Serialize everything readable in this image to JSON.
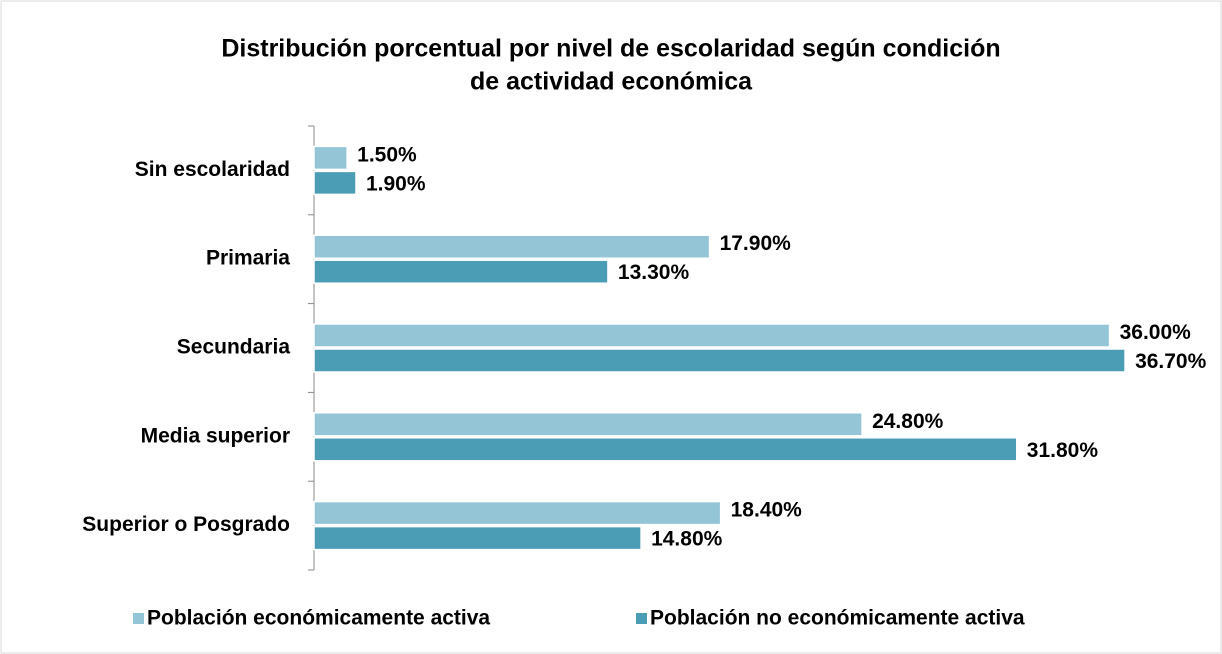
{
  "chart_data": {
    "type": "hbar",
    "title": [
      "Distribución porcentual  por nivel de escolaridad según condición",
      "de actividad económica"
    ],
    "categories": [
      "Sin escolaridad",
      "Primaria",
      "Secundaria",
      "Media superior",
      "Superior o Posgrado"
    ],
    "series": [
      {
        "name": "Población económicamente activa",
        "color": "#93c5d7",
        "values": [
          1.5,
          17.9,
          36.0,
          24.8,
          18.4
        ],
        "value_labels": [
          "1.50%",
          "17.90%",
          "36.00%",
          "24.80%",
          "18.40%"
        ]
      },
      {
        "name": "Población no económicamente activa",
        "color": "#4a9db5",
        "values": [
          1.9,
          13.3,
          36.7,
          31.8,
          14.8
        ],
        "value_labels": [
          "1.90%",
          "13.30%",
          "36.70%",
          "31.80%",
          "14.80%"
        ]
      }
    ],
    "xlim": [
      0,
      40
    ],
    "legend": "bottom"
  }
}
